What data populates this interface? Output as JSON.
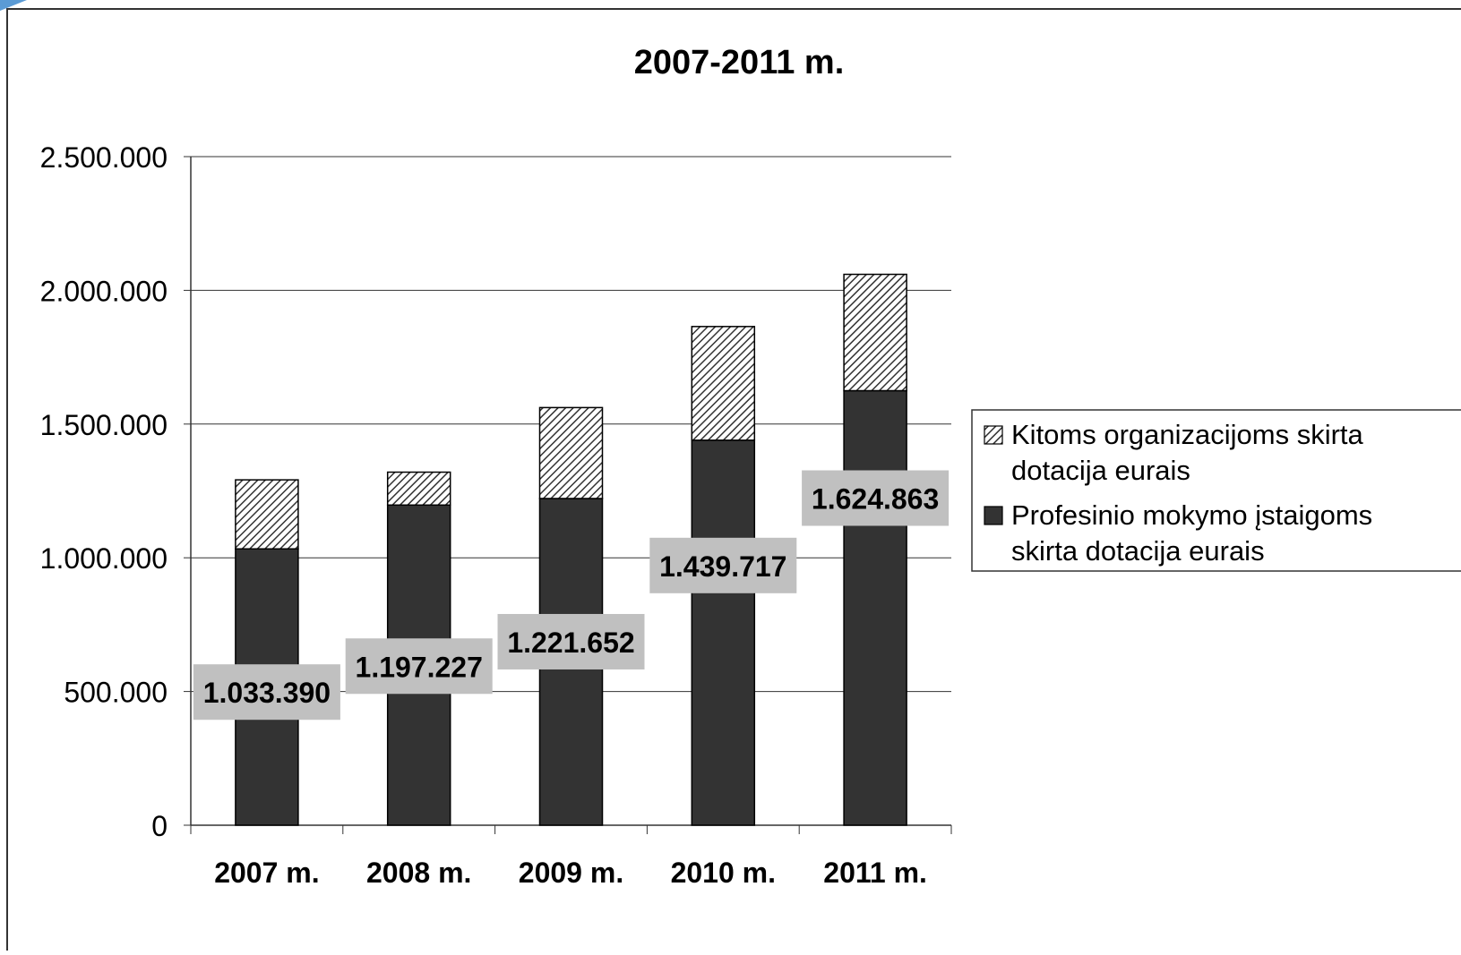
{
  "chart_data": {
    "type": "bar",
    "stacked": true,
    "title": "2007-2011 m.",
    "xlabel": "",
    "ylabel": "",
    "categories": [
      "2007 m.",
      "2008 m.",
      "2009 m.",
      "2010 m.",
      "2011 m."
    ],
    "ylim": [
      0,
      2500000
    ],
    "yticks": [
      0,
      500000,
      1000000,
      1500000,
      2000000,
      2500000
    ],
    "ytick_labels": [
      "0",
      "500.000",
      "1.000.000",
      "1.500.000",
      "2.000.000",
      "2.500.000"
    ],
    "grid": true,
    "legend_position": "right",
    "series": [
      {
        "name": "Profesinio mokymo įstaigoms skirta dotacija eurais",
        "values": [
          1033390,
          1197227,
          1221652,
          1439717,
          1624863
        ],
        "data_labels": [
          "1.033.390",
          "1.197.227",
          "1.221.652",
          "1.439.717",
          "1.624.863"
        ],
        "color": "#333333",
        "fill": "solid"
      },
      {
        "name": "Kitoms organizacijoms skirta dotacija eurais",
        "values": [
          258000,
          123000,
          340000,
          425000,
          435000
        ],
        "color": "#ffffff",
        "fill": "diagonal-hatch"
      }
    ],
    "legend_lines": [
      [
        "Kitoms organizacijoms skirta",
        "dotacija eurais"
      ],
      [
        "Profesinio mokymo įstaigoms",
        "skirta dotacija eurais"
      ]
    ]
  }
}
